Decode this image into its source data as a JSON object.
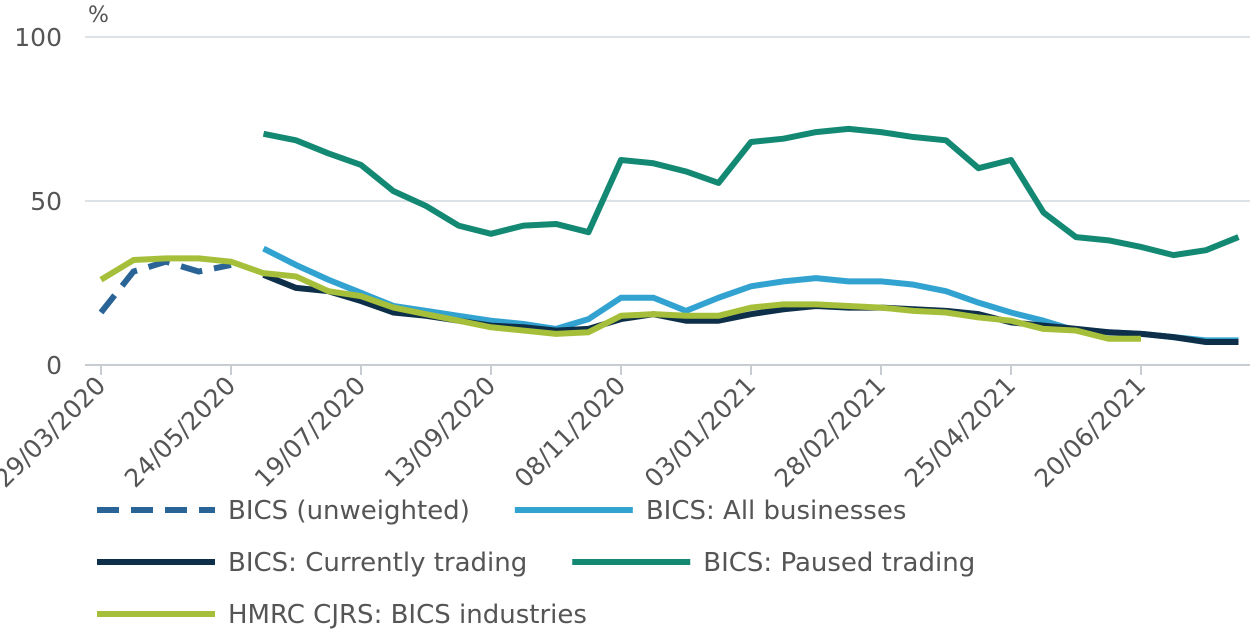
{
  "chart_data": {
    "type": "line",
    "y_label": "%",
    "categories": [
      "29/03/2020",
      null,
      null,
      null,
      "24/05/2020",
      null,
      null,
      null,
      "19/07/2020",
      null,
      null,
      null,
      "13/09/2020",
      null,
      null,
      null,
      "08/11/2020",
      null,
      null,
      null,
      "03/01/2021",
      null,
      null,
      null,
      "28/02/2021",
      null,
      null,
      null,
      "25/04/2021",
      null,
      null,
      null,
      "20/06/2021",
      null,
      null,
      null
    ],
    "ylim": [
      0,
      100
    ],
    "yticks": [
      0,
      50,
      100
    ],
    "grid": true,
    "legend": "bottom",
    "series": [
      {
        "name": "BICS (unweighted)",
        "color": "#2a6496",
        "dashed": true,
        "values": [
          16,
          28.5,
          31.5,
          28.5,
          30.5,
          null,
          null,
          null,
          null,
          null,
          null,
          null,
          null,
          null,
          null,
          null,
          null,
          null,
          null,
          null,
          null,
          null,
          null,
          null,
          null,
          null,
          null,
          null,
          null,
          null,
          null,
          null,
          null,
          null,
          null,
          null
        ]
      },
      {
        "name": "BICS: All businesses",
        "color": "#32a3d1",
        "values": [
          null,
          null,
          null,
          null,
          null,
          35.5,
          30.5,
          26,
          22,
          18,
          16.5,
          15,
          13.5,
          12.5,
          11,
          14,
          20.5,
          20.5,
          16.5,
          20.5,
          24,
          25.5,
          26.5,
          25.5,
          25.5,
          24.5,
          22.5,
          19,
          16,
          13.5,
          10.5,
          10,
          9.5,
          8.5,
          7.5,
          7.5
        ]
      },
      {
        "name": "BICS: Currently trading",
        "color": "#0d2f4a",
        "values": [
          null,
          null,
          null,
          null,
          null,
          27.5,
          23.5,
          22.5,
          19.5,
          16,
          15,
          13.5,
          12,
          11.5,
          10.5,
          11,
          14,
          15.5,
          13.5,
          13.5,
          15.5,
          17,
          18,
          17.5,
          17.5,
          17,
          16.5,
          15.5,
          13,
          12,
          11,
          10,
          9.5,
          8.5,
          7,
          7
        ]
      },
      {
        "name": "BICS: Paused trading",
        "color": "#138872",
        "values": [
          null,
          null,
          null,
          null,
          null,
          70.5,
          68.5,
          64.5,
          61,
          53,
          48.5,
          42.5,
          40,
          42.5,
          43,
          40.5,
          62.5,
          61.5,
          59,
          55.5,
          68,
          69,
          71,
          72,
          71,
          69.5,
          68.5,
          60,
          62.5,
          46.5,
          39,
          38,
          36,
          33.5,
          35,
          39
        ]
      },
      {
        "name": "HMRC CJRS: BICS industries",
        "color": "#a6bf3a",
        "values": [
          26,
          32,
          32.5,
          32.5,
          31.5,
          28,
          27,
          22.5,
          21,
          17.5,
          15.5,
          13.5,
          11.5,
          10.5,
          9.5,
          10,
          15,
          15.5,
          15,
          15,
          17.5,
          18.5,
          18.5,
          18,
          17.5,
          16.5,
          16,
          14.5,
          13.5,
          11,
          10.5,
          8,
          8,
          null,
          null,
          null
        ]
      }
    ]
  }
}
